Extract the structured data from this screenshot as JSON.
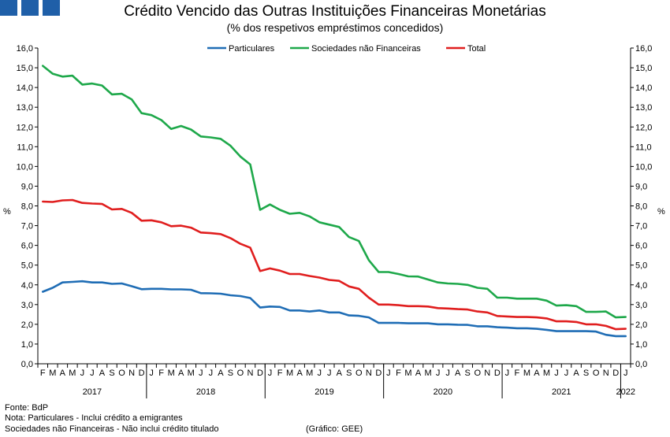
{
  "header": {
    "logo_name": "gee-logo",
    "logo_color": "#1f5fa8"
  },
  "footer": {
    "source": "Fonte: BdP",
    "note1": "Nota: Particulares - Inclui crédito a emigrantes",
    "note2": "Sociedades não Financeiras - Não inclui crédito titulado",
    "credit": "(Gráfico: GEE)"
  },
  "chart_data": {
    "type": "line",
    "title": "Crédito Vencido das Outras Instituições Financeiras Monetárias",
    "subtitle": "(% dos respetivos empréstimos concedidos)",
    "ylabel_left": "%",
    "ylabel_right": "%",
    "ylim": [
      0,
      16
    ],
    "yticks": [
      "0,0",
      "1,0",
      "2,0",
      "3,0",
      "4,0",
      "5,0",
      "6,0",
      "7,0",
      "8,0",
      "9,0",
      "10,0",
      "11,0",
      "12,0",
      "13,0",
      "14,0",
      "15,0",
      "16,0"
    ],
    "legend_position": "top-center",
    "grid": false,
    "x": [
      "F",
      "M",
      "A",
      "M",
      "J",
      "J",
      "A",
      "S",
      "O",
      "N",
      "D",
      "J",
      "F",
      "M",
      "A",
      "M",
      "J",
      "J",
      "A",
      "S",
      "O",
      "N",
      "D",
      "J",
      "F",
      "M",
      "A",
      "M",
      "J",
      "J",
      "A",
      "S",
      "O",
      "N",
      "D",
      "J",
      "F",
      "M",
      "A",
      "M",
      "J",
      "J",
      "A",
      "S",
      "O",
      "N",
      "D",
      "J",
      "F",
      "M",
      "A",
      "M",
      "J",
      "J",
      "A",
      "S",
      "O",
      "N",
      "D",
      "J"
    ],
    "years": [
      {
        "label": "2017",
        "start": 0,
        "end": 10
      },
      {
        "label": "2018",
        "start": 11,
        "end": 22
      },
      {
        "label": "2019",
        "start": 23,
        "end": 34
      },
      {
        "label": "2020",
        "start": 35,
        "end": 46
      },
      {
        "label": "2021",
        "start": 47,
        "end": 58
      },
      {
        "label": "2022",
        "start": 59,
        "end": 59
      }
    ],
    "series": [
      {
        "name": "Particulares",
        "color": "#1f6db5",
        "values": [
          3.65,
          3.85,
          4.12,
          4.15,
          4.18,
          4.12,
          4.12,
          4.05,
          4.07,
          3.93,
          3.78,
          3.8,
          3.8,
          3.77,
          3.77,
          3.75,
          3.58,
          3.57,
          3.55,
          3.47,
          3.43,
          3.33,
          2.85,
          2.9,
          2.88,
          2.7,
          2.7,
          2.65,
          2.7,
          2.6,
          2.6,
          2.45,
          2.43,
          2.35,
          2.07,
          2.07,
          2.07,
          2.05,
          2.05,
          2.05,
          2.0,
          2.0,
          1.98,
          1.97,
          1.9,
          1.9,
          1.85,
          1.83,
          1.8,
          1.8,
          1.77,
          1.72,
          1.65,
          1.65,
          1.65,
          1.65,
          1.63,
          1.47,
          1.4,
          1.4
        ]
      },
      {
        "name": "Sociedades não Financeiras",
        "color": "#1ea84a",
        "values": [
          15.1,
          14.7,
          14.55,
          14.6,
          14.15,
          14.2,
          14.1,
          13.65,
          13.68,
          13.4,
          12.7,
          12.6,
          12.35,
          11.9,
          12.05,
          11.87,
          11.52,
          11.47,
          11.4,
          11.05,
          10.5,
          10.1,
          7.8,
          8.07,
          7.8,
          7.6,
          7.65,
          7.47,
          7.17,
          7.05,
          6.93,
          6.42,
          6.22,
          5.25,
          4.65,
          4.65,
          4.55,
          4.43,
          4.42,
          4.27,
          4.12,
          4.07,
          4.05,
          4.0,
          3.85,
          3.8,
          3.35,
          3.35,
          3.3,
          3.3,
          3.3,
          3.2,
          2.95,
          2.97,
          2.92,
          2.63,
          2.63,
          2.65,
          2.35,
          2.37
        ]
      },
      {
        "name": "Total",
        "color": "#e01e1e",
        "values": [
          8.22,
          8.2,
          8.28,
          8.3,
          8.15,
          8.12,
          8.1,
          7.82,
          7.85,
          7.65,
          7.25,
          7.27,
          7.17,
          6.97,
          7.0,
          6.9,
          6.65,
          6.62,
          6.57,
          6.37,
          6.08,
          5.88,
          4.7,
          4.83,
          4.72,
          4.55,
          4.55,
          4.45,
          4.37,
          4.25,
          4.2,
          3.92,
          3.8,
          3.35,
          3.0,
          3.0,
          2.97,
          2.92,
          2.92,
          2.9,
          2.82,
          2.8,
          2.77,
          2.75,
          2.65,
          2.6,
          2.42,
          2.4,
          2.37,
          2.37,
          2.35,
          2.3,
          2.15,
          2.15,
          2.12,
          2.0,
          2.0,
          1.92,
          1.75,
          1.77
        ]
      }
    ]
  }
}
